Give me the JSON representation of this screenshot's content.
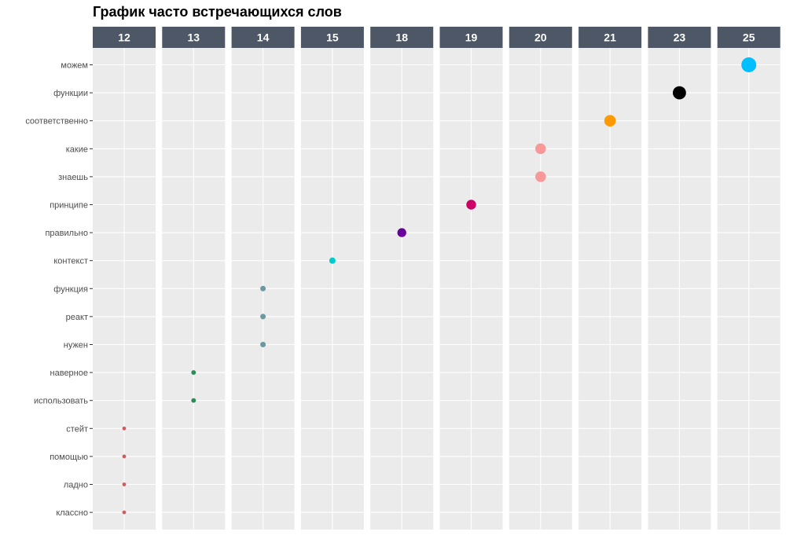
{
  "chart_data": {
    "type": "scatter",
    "title": "График часто встречающихся слов",
    "xlabel": "",
    "ylabel": "",
    "facets": [
      "12",
      "13",
      "14",
      "15",
      "18",
      "19",
      "20",
      "21",
      "23",
      "25"
    ],
    "y_categories": [
      "можем",
      "функции",
      "соответственно",
      "какие",
      "знаешь",
      "принципе",
      "правильно",
      "контекст",
      "функция",
      "реакт",
      "нужен",
      "наверное",
      "использовать",
      "стейт",
      "помощью",
      "ладно",
      "классно"
    ],
    "points": [
      {
        "word": "можем",
        "count": 25,
        "color": "#00BFFF"
      },
      {
        "word": "функции",
        "count": 23,
        "color": "#000000"
      },
      {
        "word": "соответственно",
        "count": 21,
        "color": "#FF9900"
      },
      {
        "word": "какие",
        "count": 20,
        "color": "#F89898"
      },
      {
        "word": "знаешь",
        "count": 20,
        "color": "#F89898"
      },
      {
        "word": "принципе",
        "count": 19,
        "color": "#CC0066"
      },
      {
        "word": "правильно",
        "count": 18,
        "color": "#660099"
      },
      {
        "word": "контекст",
        "count": 15,
        "color": "#00CCCC"
      },
      {
        "word": "функция",
        "count": 14,
        "color": "#6A9AA0"
      },
      {
        "word": "реакт",
        "count": 14,
        "color": "#6A9AA0"
      },
      {
        "word": "нужен",
        "count": 14,
        "color": "#6A9AA0"
      },
      {
        "word": "наверное",
        "count": 13,
        "color": "#2E8B57"
      },
      {
        "word": "использовать",
        "count": 13,
        "color": "#2E8B57"
      },
      {
        "word": "стейт",
        "count": 12,
        "color": "#CD5C5C"
      },
      {
        "word": "помощью",
        "count": 12,
        "color": "#CD5C5C"
      },
      {
        "word": "ладно",
        "count": 12,
        "color": "#CD5C5C"
      },
      {
        "word": "классно",
        "count": 12,
        "color": "#CD5C5C"
      }
    ],
    "grid": true,
    "legend": "none",
    "colors": {
      "panel_background": "#EBEBEB",
      "grid_line": "#FFFFFF",
      "strip_background": "#4D5765",
      "strip_text": "#FFFFFF",
      "axis_text": "#4D4D4D",
      "tick": "#333333"
    }
  }
}
